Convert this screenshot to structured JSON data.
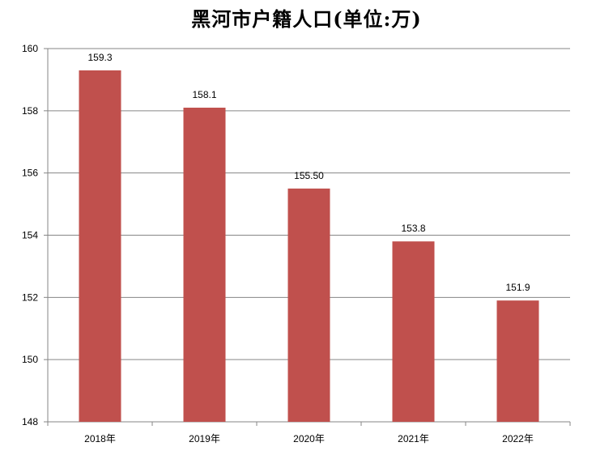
{
  "chart_data": {
    "type": "bar",
    "title": "黑河市户籍人口(单位:万)",
    "categories": [
      "2018年",
      "2019年",
      "2020年",
      "2021年",
      "2022年"
    ],
    "values": [
      159.3,
      158.1,
      155.5,
      153.8,
      151.9
    ],
    "data_labels": [
      "159.3",
      "158.1",
      "155.50",
      "153.8",
      "151.9"
    ],
    "xlabel": "",
    "ylabel": "",
    "ylim": [
      148,
      160
    ],
    "yticks": [
      "148",
      "150",
      "152",
      "154",
      "156",
      "158",
      "160"
    ],
    "grid": true,
    "legend": "none",
    "bar_color": "#c0504d",
    "grid_color": "#868686"
  }
}
